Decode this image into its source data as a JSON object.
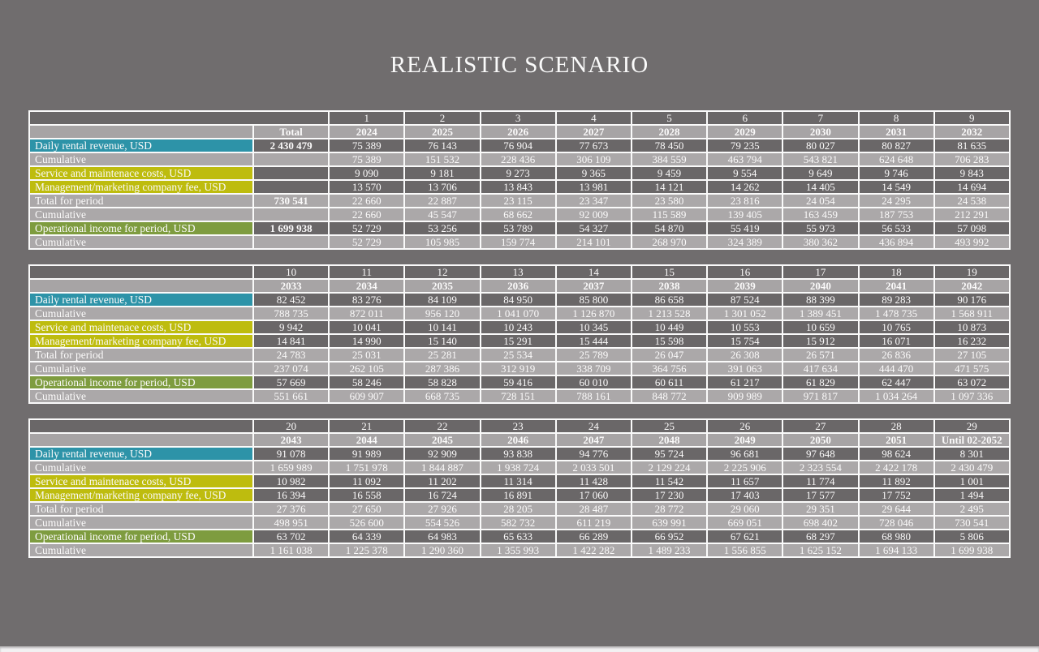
{
  "page": {
    "title": "REALISTIC SCENARIO"
  },
  "colors": {
    "page_bg": "#706D6E",
    "dark_cell": "#6A6768",
    "light_cell": "#ABA8A9",
    "year_header_cell": "#A7A4A5",
    "teal_label": "#2D93A8",
    "yellow_label": "#BEBC0E",
    "olive_label": "#7E9C3F",
    "grid_line": "#FAFAFA",
    "text": "#FBFAFA",
    "viewer_strip": "#F2F1F2"
  },
  "total_column": {
    "header": "Total"
  },
  "rows": [
    {
      "label": "Daily rental revenue, USD",
      "label_style": "teal",
      "shade": "dark",
      "total": "2 430 479"
    },
    {
      "label": "Cumulative",
      "label_style": "light",
      "shade": "light",
      "total": ""
    },
    {
      "label": "Service and maintenace costs, USD",
      "label_style": "yellow",
      "shade": "dark",
      "total": ""
    },
    {
      "label": "Management/marketing company fee, USD",
      "label_style": "yellow",
      "shade": "dark",
      "total": ""
    },
    {
      "label": "Total for period",
      "label_style": "light",
      "shade": "light",
      "total": "730 541"
    },
    {
      "label": "Cumulative",
      "label_style": "light",
      "shade": "light",
      "total": ""
    },
    {
      "label": "Operational income for period, USD",
      "label_style": "olive",
      "shade": "dark",
      "total": "1 699 938"
    },
    {
      "label": "Cumulative",
      "label_style": "light",
      "shade": "light",
      "total": ""
    }
  ],
  "tables": [
    {
      "name": "scenario-table-periods-1-9",
      "has_total_column": true,
      "periods": [
        "1",
        "2",
        "3",
        "4",
        "5",
        "6",
        "7",
        "8",
        "9"
      ],
      "years": [
        "2024",
        "2025",
        "2026",
        "2027",
        "2028",
        "2029",
        "2030",
        "2031",
        "2032"
      ],
      "values": [
        [
          "75 389",
          "76 143",
          "76 904",
          "77 673",
          "78 450",
          "79 235",
          "80 027",
          "80 827",
          "81 635"
        ],
        [
          "75 389",
          "151 532",
          "228 436",
          "306 109",
          "384 559",
          "463 794",
          "543 821",
          "624 648",
          "706 283"
        ],
        [
          "9 090",
          "9 181",
          "9 273",
          "9 365",
          "9 459",
          "9 554",
          "9 649",
          "9 746",
          "9 843"
        ],
        [
          "13 570",
          "13 706",
          "13 843",
          "13 981",
          "14 121",
          "14 262",
          "14 405",
          "14 549",
          "14 694"
        ],
        [
          "22 660",
          "22 887",
          "23 115",
          "23 347",
          "23 580",
          "23 816",
          "24 054",
          "24 295",
          "24 538"
        ],
        [
          "22 660",
          "45 547",
          "68 662",
          "92 009",
          "115 589",
          "139 405",
          "163 459",
          "187 753",
          "212 291"
        ],
        [
          "52 729",
          "53 256",
          "53 789",
          "54 327",
          "54 870",
          "55 419",
          "55 973",
          "56 533",
          "57 098"
        ],
        [
          "52 729",
          "105 985",
          "159 774",
          "214 101",
          "268 970",
          "324 389",
          "380 362",
          "436 894",
          "493 992"
        ]
      ]
    },
    {
      "name": "scenario-table-periods-10-19",
      "has_total_column": false,
      "periods": [
        "10",
        "11",
        "12",
        "13",
        "14",
        "15",
        "16",
        "17",
        "18",
        "19"
      ],
      "years": [
        "2033",
        "2034",
        "2035",
        "2036",
        "2037",
        "2038",
        "2039",
        "2040",
        "2041",
        "2042"
      ],
      "values": [
        [
          "82 452",
          "83 276",
          "84 109",
          "84 950",
          "85 800",
          "86 658",
          "87 524",
          "88 399",
          "89 283",
          "90 176"
        ],
        [
          "788 735",
          "872 011",
          "956 120",
          "1 041 070",
          "1 126 870",
          "1 213 528",
          "1 301 052",
          "1 389 451",
          "1 478 735",
          "1 568 911"
        ],
        [
          "9 942",
          "10 041",
          "10 141",
          "10 243",
          "10 345",
          "10 449",
          "10 553",
          "10 659",
          "10 765",
          "10 873"
        ],
        [
          "14 841",
          "14 990",
          "15 140",
          "15 291",
          "15 444",
          "15 598",
          "15 754",
          "15 912",
          "16 071",
          "16 232"
        ],
        [
          "24 783",
          "25 031",
          "25 281",
          "25 534",
          "25 789",
          "26 047",
          "26 308",
          "26 571",
          "26 836",
          "27 105"
        ],
        [
          "237 074",
          "262 105",
          "287 386",
          "312 919",
          "338 709",
          "364 756",
          "391 063",
          "417 634",
          "444 470",
          "471 575"
        ],
        [
          "57 669",
          "58 246",
          "58 828",
          "59 416",
          "60 010",
          "60 611",
          "61 217",
          "61 829",
          "62 447",
          "63 072"
        ],
        [
          "551 661",
          "609 907",
          "668 735",
          "728 151",
          "788 161",
          "848 772",
          "909 989",
          "971 817",
          "1 034 264",
          "1 097 336"
        ]
      ]
    },
    {
      "name": "scenario-table-periods-20-29",
      "has_total_column": false,
      "periods": [
        "20",
        "21",
        "22",
        "23",
        "24",
        "25",
        "26",
        "27",
        "28",
        "29"
      ],
      "years": [
        "2043",
        "2044",
        "2045",
        "2046",
        "2047",
        "2048",
        "2049",
        "2050",
        "2051",
        "Until 02-2052"
      ],
      "values": [
        [
          "91 078",
          "91 989",
          "92 909",
          "93 838",
          "94 776",
          "95 724",
          "96 681",
          "97 648",
          "98 624",
          "8 301"
        ],
        [
          "1 659 989",
          "1 751 978",
          "1 844 887",
          "1 938 724",
          "2 033 501",
          "2 129 224",
          "2 225 906",
          "2 323 554",
          "2 422 178",
          "2 430 479"
        ],
        [
          "10 982",
          "11 092",
          "11 202",
          "11 314",
          "11 428",
          "11 542",
          "11 657",
          "11 774",
          "11 892",
          "1 001"
        ],
        [
          "16 394",
          "16 558",
          "16 724",
          "16 891",
          "17 060",
          "17 230",
          "17 403",
          "17 577",
          "17 752",
          "1 494"
        ],
        [
          "27 376",
          "27 650",
          "27 926",
          "28 205",
          "28 487",
          "28 772",
          "29 060",
          "29 351",
          "29 644",
          "2 495"
        ],
        [
          "498 951",
          "526 600",
          "554 526",
          "582 732",
          "611 219",
          "639 991",
          "669 051",
          "698 402",
          "728 046",
          "730 541"
        ],
        [
          "63 702",
          "64 339",
          "64 983",
          "65 633",
          "66 289",
          "66 952",
          "67 621",
          "68 297",
          "68 980",
          "5 806"
        ],
        [
          "1 161 038",
          "1 225 378",
          "1 290 360",
          "1 355 993",
          "1 422 282",
          "1 489 233",
          "1 556 855",
          "1 625 152",
          "1 694 133",
          "1 699 938"
        ]
      ]
    }
  ]
}
